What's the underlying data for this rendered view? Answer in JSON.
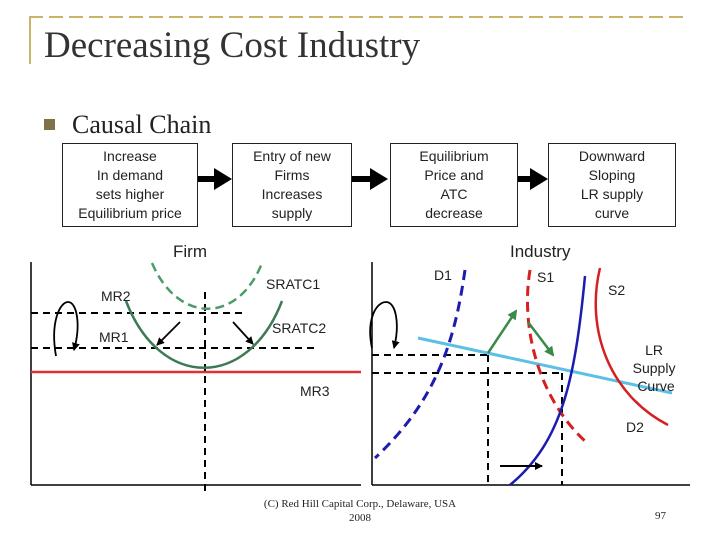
{
  "slide": {
    "title": "Decreasing Cost Industry",
    "bullet": "Causal Chain",
    "page_number": "97",
    "footer": "(C) Red Hill Capital Corp., Delaware, USA\n2008"
  },
  "chain": [
    {
      "text": "Increase\nIn demand\nsets higher\nEquilibrium price"
    },
    {
      "text": "Entry of new\nFirms\nIncreases\nsupply"
    },
    {
      "text": "Equilibrium\nPrice and\nATC\ndecrease"
    },
    {
      "text": "Downward\nSloping\nLR supply\ncurve"
    }
  ],
  "firm": {
    "title": "Firm",
    "labels": {
      "mr2": "MR2",
      "mr1": "MR1",
      "mr3": "MR3",
      "sratc1": "SRATC1",
      "sratc2": "SRATC2"
    }
  },
  "industry": {
    "title": "Industry",
    "labels": {
      "d1": "D1",
      "s1": "S1",
      "s2": "S2",
      "d2": "D2",
      "lr": "LR\nSupply\nCurve"
    }
  },
  "colors": {
    "accent_rule": "#c9b469",
    "bullet": "#7f7248",
    "mr3_line": "#e03030",
    "sratc1": "#4d9a6a",
    "sratc2": "#3d7a55",
    "demand": "#1c1cb0",
    "supply": "#d42020",
    "lr_supply": "#5bbfe6",
    "arrow_green": "#3a8a4a"
  }
}
